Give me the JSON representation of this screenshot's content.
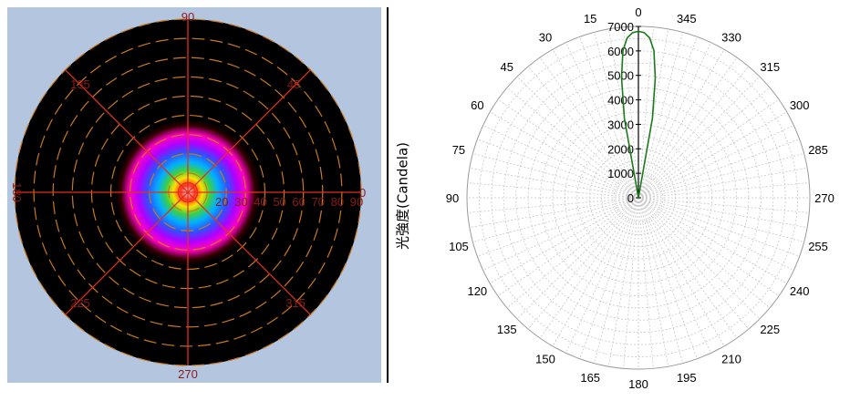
{
  "colors": {
    "background_panel": "#b4c6df",
    "plot_black": "#000000",
    "grid_red": "#e03020",
    "ring_orange": "#c8781e",
    "label_dark_red": "#8b1a1a",
    "curve_green": "#1a7a1a",
    "polar_grid": "#c8c8c8"
  },
  "chart_data": [
    {
      "type": "heatmap",
      "description_kind": "polar luminous intensity heatmap",
      "angle_labels": [
        "90",
        "45",
        "0",
        "315",
        "270",
        "225",
        "180",
        "135"
      ],
      "radial_tick_labels": [
        "20",
        "30",
        "40",
        "50",
        "60",
        "70",
        "80",
        "90"
      ],
      "radial_range": [
        0,
        90
      ],
      "colormap": [
        "#ffffff",
        "#ff3020",
        "#ffe000",
        "#40d040",
        "#00b0ff",
        "#3050ff",
        "#b000ff",
        "#ff00c0",
        "#300000",
        "#000000"
      ]
    },
    {
      "type": "line",
      "ylabel": "光強度(Candela)",
      "radial_ticks": [
        "0",
        "1000",
        "2000",
        "3000",
        "4000",
        "5000",
        "6000",
        "7000"
      ],
      "radial_range": [
        0,
        7000
      ],
      "angular_ticks": [
        "0",
        "15",
        "30",
        "45",
        "60",
        "75",
        "90",
        "105",
        "120",
        "135",
        "150",
        "165",
        "180",
        "195",
        "210",
        "225",
        "240",
        "255",
        "270",
        "285",
        "300",
        "315",
        "330",
        "345"
      ],
      "angle_direction": "counterclockwise from top",
      "grid": true,
      "series": [
        {
          "color": "#1a7a1a",
          "theta_deg": [
            -12,
            -10,
            -8,
            -6,
            -4,
            -2,
            0,
            2,
            4,
            6,
            8,
            10,
            12
          ],
          "r": [
            0,
            3300,
            4950,
            6050,
            6550,
            6750,
            6800,
            6750,
            6550,
            6050,
            4950,
            3300,
            0
          ]
        }
      ]
    }
  ]
}
